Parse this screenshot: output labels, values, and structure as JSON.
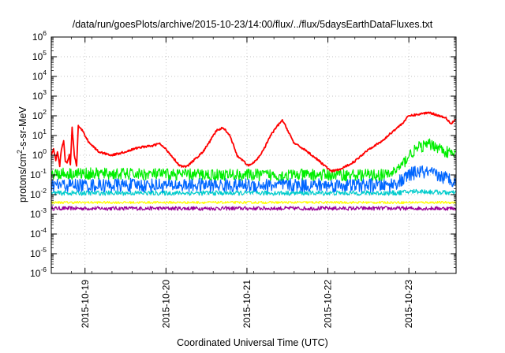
{
  "chart_data": {
    "type": "line",
    "title": "/data/run/goesPlots/archive/2015-10-23/14:00/flux/../flux/5daysEarthDataFluxes.txt",
    "xlabel": "Coordinated Universal Time (UTC)",
    "ylabel": {
      "pre": "protons/cm",
      "sup": "2",
      "post": "-s-sr-MeV"
    },
    "y_scale": "log",
    "ylim": [
      1e-06,
      1000000.0
    ],
    "y_ticks": [
      {
        "base": "10",
        "exp": "-6"
      },
      {
        "base": "10",
        "exp": "-5"
      },
      {
        "base": "10",
        "exp": "-4"
      },
      {
        "base": "10",
        "exp": "-3"
      },
      {
        "base": "10",
        "exp": "-2"
      },
      {
        "base": "10",
        "exp": "-1"
      },
      {
        "base": "10",
        "exp": "0"
      },
      {
        "base": "10",
        "exp": "1"
      },
      {
        "base": "10",
        "exp": "2"
      },
      {
        "base": "10",
        "exp": "3"
      },
      {
        "base": "10",
        "exp": "4"
      },
      {
        "base": "10",
        "exp": "5"
      },
      {
        "base": "10",
        "exp": "6"
      }
    ],
    "xlim": [
      "2015-10-18T14:00",
      "2015-10-23T14:00"
    ],
    "x_ticks": [
      "2015-10-19",
      "2015-10-20",
      "2015-10-21",
      "2015-10-22",
      "2015-10-23"
    ],
    "grid": true,
    "series": [
      {
        "color": "#ff0000",
        "noise": 0.05,
        "points": [
          [
            "2015-10-18T14:00",
            1.0
          ],
          [
            "2015-10-18T14:40",
            2.0
          ],
          [
            "2015-10-18T15:20",
            0.5
          ],
          [
            "2015-10-18T15:50",
            1.5
          ],
          [
            "2015-10-18T16:30",
            0.3
          ],
          [
            "2015-10-18T17:00",
            2.0
          ],
          [
            "2015-10-18T17:40",
            5.0
          ],
          [
            "2015-10-18T18:10",
            0.5
          ],
          [
            "2015-10-18T18:40",
            0.4
          ],
          [
            "2015-10-18T19:20",
            1.0
          ],
          [
            "2015-10-18T19:40",
            0.3
          ],
          [
            "2015-10-18T20:10",
            25
          ],
          [
            "2015-10-18T20:50",
            1.0
          ],
          [
            "2015-10-18T21:30",
            0.3
          ],
          [
            "2015-10-18T22:00",
            30
          ],
          [
            "2015-10-18T23:00",
            20
          ],
          [
            "2015-10-19T01:00",
            5.0
          ],
          [
            "2015-10-19T04:00",
            1.5
          ],
          [
            "2015-10-19T08:00",
            1.0
          ],
          [
            "2015-10-19T12:00",
            1.5
          ],
          [
            "2015-10-19T16:00",
            2.5
          ],
          [
            "2015-10-19T20:00",
            3.0
          ],
          [
            "2015-10-19T22:00",
            4.0
          ],
          [
            "2015-10-20T00:00",
            2.0
          ],
          [
            "2015-10-20T02:00",
            0.8
          ],
          [
            "2015-10-20T04:00",
            0.3
          ],
          [
            "2015-10-20T06:00",
            0.25
          ],
          [
            "2015-10-20T08:00",
            0.5
          ],
          [
            "2015-10-20T11:00",
            1.5
          ],
          [
            "2015-10-20T13:00",
            5.0
          ],
          [
            "2015-10-20T15:00",
            18
          ],
          [
            "2015-10-20T17:00",
            25
          ],
          [
            "2015-10-20T19:00",
            10
          ],
          [
            "2015-10-20T21:00",
            1.0
          ],
          [
            "2015-10-20T23:00",
            0.5
          ],
          [
            "2015-10-21T00:20",
            0.3
          ]
        ]
      },
      {
        "color": "#ff0000",
        "noise": 0.05,
        "points": [
          [
            "2015-10-21T00:20",
            0.3
          ],
          [
            "2015-10-21T02:00",
            0.4
          ],
          [
            "2015-10-21T03:30",
            0.8
          ],
          [
            "2015-10-21T05:00",
            2.0
          ],
          [
            "2015-10-21T07:00",
            10
          ],
          [
            "2015-10-21T09:00",
            30
          ],
          [
            "2015-10-21T10:30",
            60
          ],
          [
            "2015-10-21T12:00",
            20
          ],
          [
            "2015-10-21T14:00",
            4.0
          ],
          [
            "2015-10-21T17:00",
            2.0
          ],
          [
            "2015-10-21T20:00",
            0.8
          ],
          [
            "2015-10-21T23:00",
            0.3
          ],
          [
            "2015-10-22T01:00",
            0.15
          ],
          [
            "2015-10-22T04:00",
            0.2
          ],
          [
            "2015-10-22T08:00",
            0.5
          ],
          [
            "2015-10-22T12:00",
            2.0
          ],
          [
            "2015-10-22T16:00",
            5.0
          ],
          [
            "2015-10-22T19:00",
            15
          ],
          [
            "2015-10-22T22:00",
            40
          ],
          [
            "2015-10-23T00:00",
            100
          ],
          [
            "2015-10-23T03:00",
            120
          ],
          [
            "2015-10-23T06:00",
            150
          ],
          [
            "2015-10-23T09:00",
            100
          ],
          [
            "2015-10-23T11:00",
            80
          ],
          [
            "2015-10-23T12:30",
            40
          ],
          [
            "2015-10-23T14:00",
            70
          ]
        ]
      },
      {
        "color": "#00ee00",
        "noise": 0.3,
        "points": [
          [
            "2015-10-18T14:00",
            0.12
          ],
          [
            "2015-10-21T00:20",
            0.1
          ],
          [
            "2015-10-22T12:00",
            0.1
          ],
          [
            "2015-10-22T18:00",
            0.1
          ],
          [
            "2015-10-22T22:00",
            0.3
          ],
          [
            "2015-10-23T00:00",
            1.0
          ],
          [
            "2015-10-23T03:00",
            2.5
          ],
          [
            "2015-10-23T06:00",
            3.5
          ],
          [
            "2015-10-23T08:00",
            3.0
          ],
          [
            "2015-10-23T11:00",
            1.5
          ],
          [
            "2015-10-23T14:00",
            1.0
          ]
        ]
      },
      {
        "color": "#0066ff",
        "noise": 0.35,
        "points": [
          [
            "2015-10-18T14:00",
            0.03
          ],
          [
            "2015-10-22T18:00",
            0.03
          ],
          [
            "2015-10-22T22:00",
            0.05
          ],
          [
            "2015-10-23T00:00",
            0.1
          ],
          [
            "2015-10-23T03:00",
            0.15
          ],
          [
            "2015-10-23T08:00",
            0.1
          ],
          [
            "2015-10-23T14:00",
            0.05
          ]
        ]
      },
      {
        "color": "#00cccc",
        "noise": 0.12,
        "points": [
          [
            "2015-10-18T14:00",
            0.012
          ],
          [
            "2015-10-22T20:00",
            0.012
          ],
          [
            "2015-10-23T02:00",
            0.015
          ],
          [
            "2015-10-23T14:00",
            0.012
          ]
        ]
      },
      {
        "color": "#ffff00",
        "noise": 0.06,
        "points": [
          [
            "2015-10-18T14:00",
            0.004
          ],
          [
            "2015-10-23T14:00",
            0.004
          ]
        ]
      },
      {
        "color": "#990099",
        "noise": 0.1,
        "points": [
          [
            "2015-10-18T14:00",
            0.002
          ],
          [
            "2015-10-23T14:00",
            0.002
          ]
        ]
      }
    ]
  }
}
